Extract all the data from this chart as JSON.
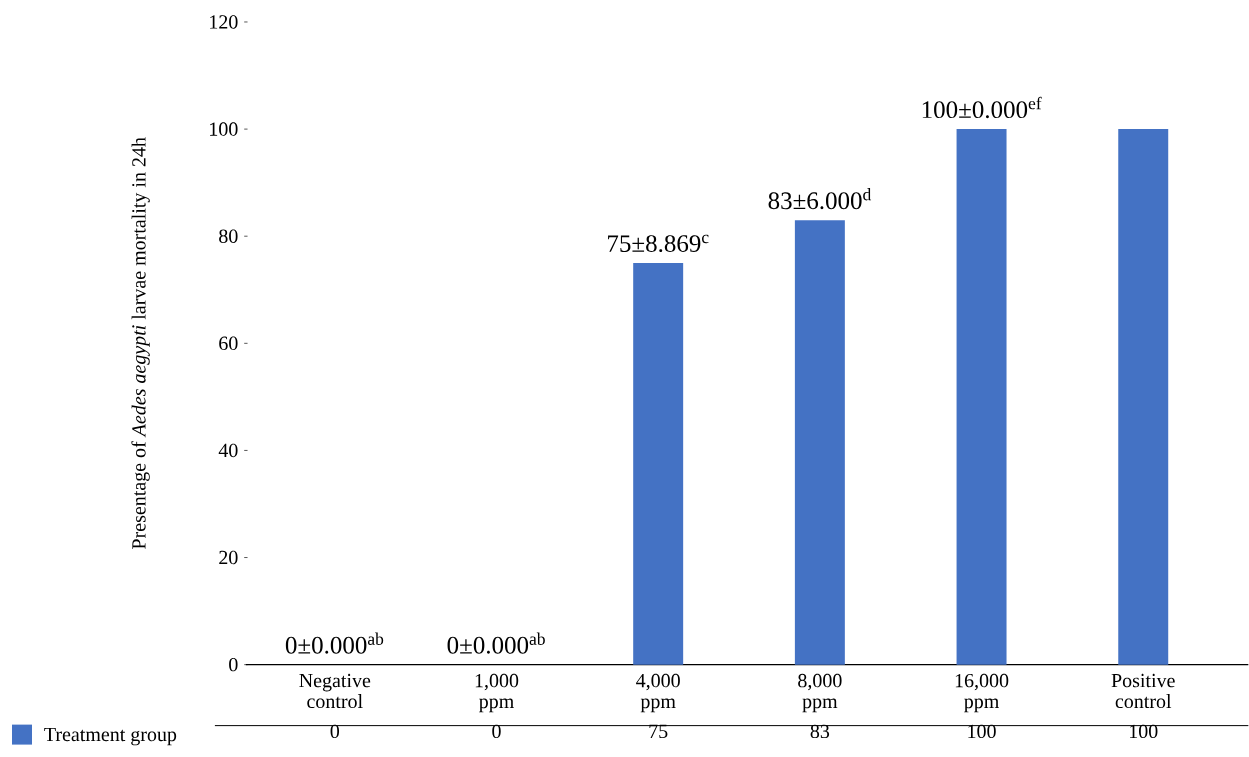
{
  "chart_data": {
    "type": "bar",
    "ylabel": "Presentage of *Aedes aegypti* larvae mortality in 24h",
    "categories": [
      "Negative control",
      "1,000 ppm",
      "4,000 ppm",
      "8,000 ppm",
      "16,000 ppm",
      "Positive control"
    ],
    "series": [
      {
        "name": "Treatment group",
        "color": "#4472c4",
        "values": [
          0,
          0,
          75,
          83,
          100,
          100
        ]
      }
    ],
    "ylim": [
      0,
      120
    ],
    "yticks": [
      0,
      20,
      40,
      60,
      80,
      100,
      120
    ],
    "data_labels": true,
    "legend": "bottom left",
    "grid": false,
    "annotations": [
      {
        "text": "0±0.000$^{ab}$",
        "x": "Negative control",
        "y": 0
      },
      {
        "text": "0±0.000$^{ab}$",
        "x": "1,000 ppm",
        "y": 0
      },
      {
        "text": "75±8.869$^{c}$",
        "x": "4,000 ppm",
        "y": 75
      },
      {
        "text": "83±6.000$^{d}$",
        "x": "8,000 ppm",
        "y": 83
      },
      {
        "text": "100±0.000$^{ef}$",
        "x": "16,000 ppm",
        "y": 100
      }
    ]
  }
}
